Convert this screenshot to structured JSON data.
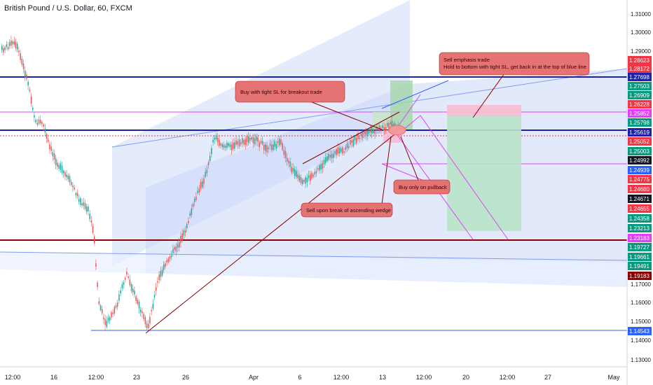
{
  "chart_data": {
    "type": "candlestick",
    "title": "British Pound / U.S. Dollar, 60, FXCM",
    "x_ticks": [
      "12:00",
      "16",
      "12:00",
      "23",
      "26",
      "Apr",
      "6",
      "12:00",
      "13",
      "12:00",
      "20",
      "12:00",
      "27",
      "May"
    ],
    "y_axis": {
      "min": 1.125,
      "max": 1.315,
      "ticks": [
        "1.31000",
        "1.30000",
        "1.29000",
        "1.17000",
        "1.16000",
        "1.15000",
        "1.14000",
        "1.13000"
      ]
    },
    "price_badges": [
      {
        "value": "1.28623",
        "color": "#f23645"
      },
      {
        "value": "1.28172",
        "color": "#f23645"
      },
      {
        "value": "1.27698",
        "color": "#1e22aa"
      },
      {
        "value": "1.27503",
        "color": "#089981"
      },
      {
        "value": "1.26909",
        "color": "#089981"
      },
      {
        "value": "1.26228",
        "color": "#f23645"
      },
      {
        "value": "1.25852",
        "color": "#e040fb"
      },
      {
        "value": "1.25798",
        "color": "#089981"
      },
      {
        "value": "1.25619",
        "color": "#1e22aa"
      },
      {
        "value": "1.25052",
        "color": "#f23645"
      },
      {
        "value": "1.25003",
        "color": "#089981"
      },
      {
        "value": "1.24992",
        "color": "#131722"
      },
      {
        "value": "1.24939",
        "color": "#2962ff"
      },
      {
        "value": "1.24775",
        "color": "#f23645"
      },
      {
        "value": "1.24680",
        "color": "#f23645"
      },
      {
        "value": "1.24671",
        "color": "#131722"
      },
      {
        "value": "1.24655",
        "color": "#f23645"
      },
      {
        "value": "1.24358",
        "color": "#089981"
      },
      {
        "value": "1.23213",
        "color": "#089981"
      },
      {
        "value": "1.23183",
        "color": "#e040fb"
      },
      {
        "value": "1.19727",
        "color": "#089981"
      },
      {
        "value": "1.19661",
        "color": "#089981"
      },
      {
        "value": "1.19491",
        "color": "#089981"
      },
      {
        "value": "1.19183",
        "color": "#8b0000"
      },
      {
        "value": "1.14543",
        "color": "#2962ff"
      }
    ],
    "annotations": [
      "Buy with tight SL for breakout trade",
      "Sell emphasis trade\nHold to bottom with tight SL, get back in at the top of blue line",
      "Buy only on pullback",
      "Sell upon break of ascending wedge"
    ],
    "colors": {
      "up": "#26a69a",
      "down": "#ef5350",
      "channel": "#b3c7f7",
      "navy": "#1e22aa",
      "magenta": "#e040fb",
      "darkred": "#8b0000",
      "callout": "#e57373"
    }
  }
}
